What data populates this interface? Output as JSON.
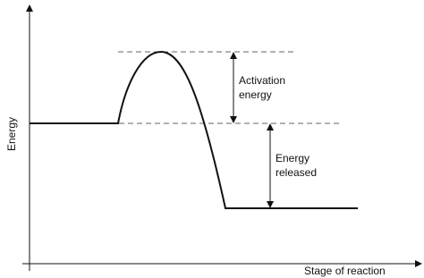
{
  "axes": {
    "y_label": "Energy",
    "x_label": "Stage of reaction"
  },
  "annotations": {
    "activation": [
      "Activation",
      "energy"
    ],
    "released": [
      "Energy",
      "released"
    ]
  }
}
